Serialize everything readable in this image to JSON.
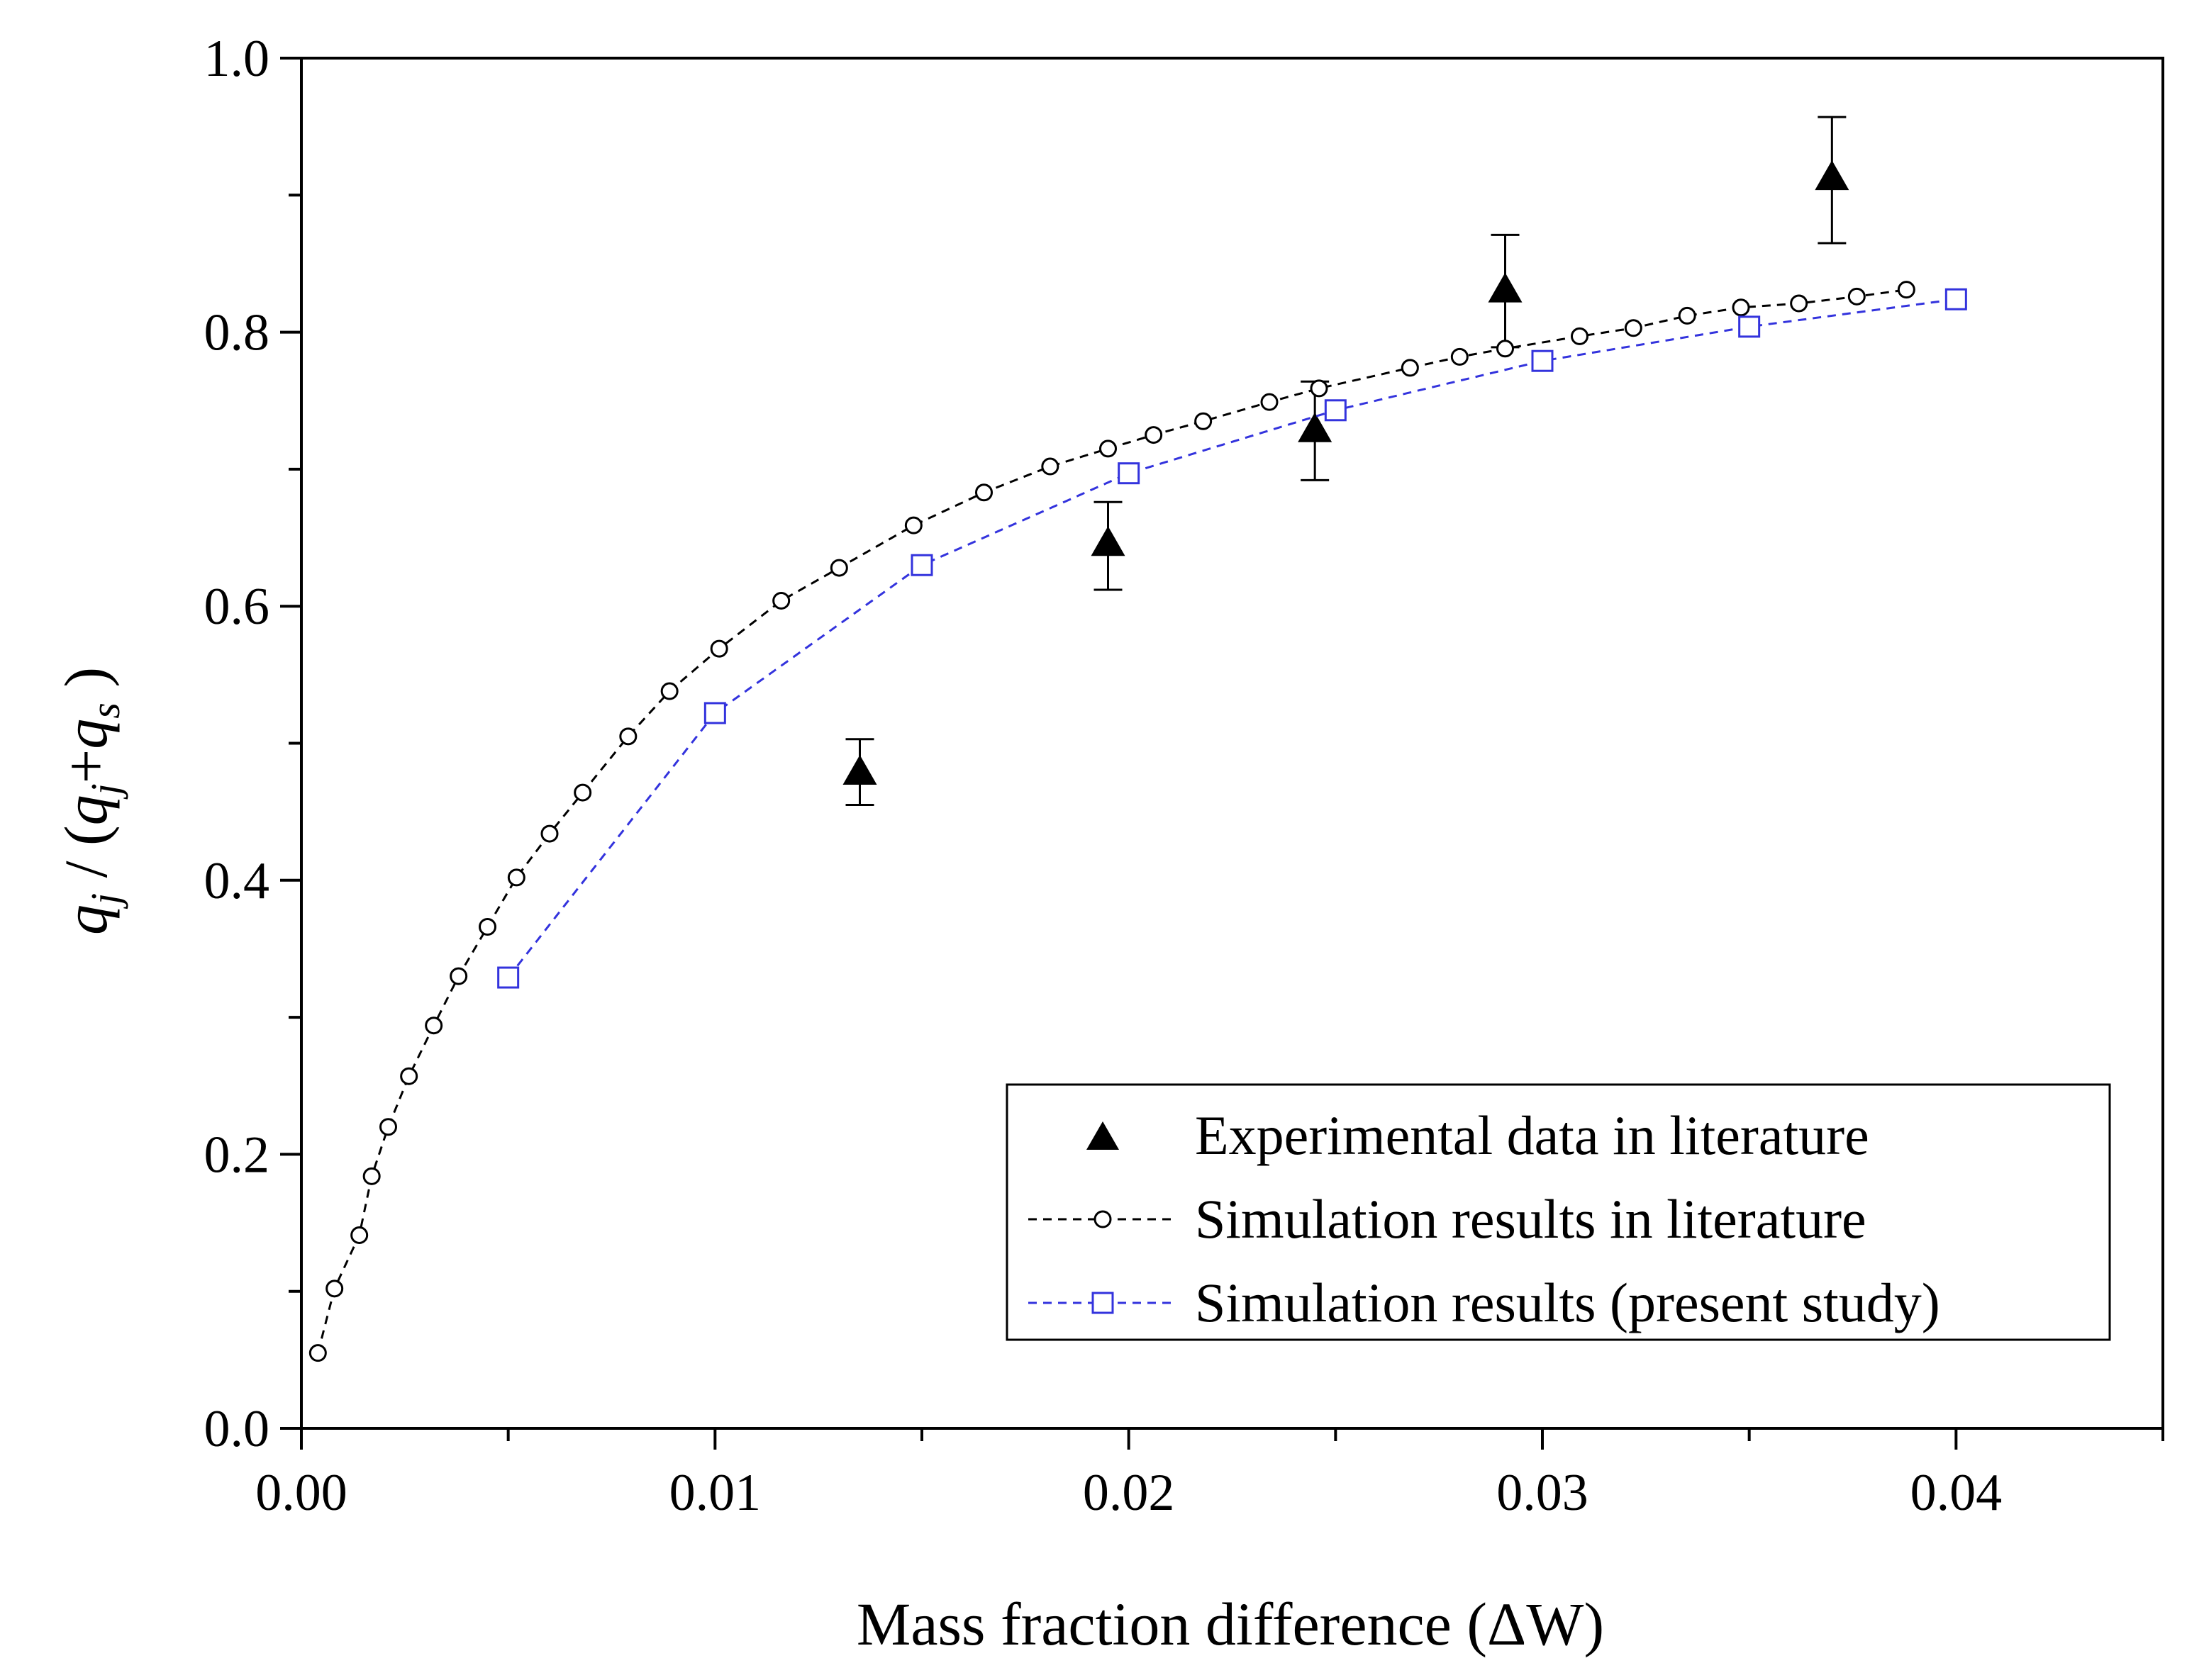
{
  "chart_data": {
    "type": "scatter",
    "title": "",
    "xlabel": "Mass fraction difference (ΔW)",
    "ylabel": {
      "q1": "q",
      "s1": "j",
      "mid": " / (",
      "q2": "q",
      "s2": "j",
      "plus": "+",
      "q3": "q",
      "s3": "s",
      "end": " )"
    },
    "xlim": [
      0.0,
      0.045
    ],
    "ylim": [
      0.0,
      1.0
    ],
    "x_ticks": [
      0.0,
      0.01,
      0.02,
      0.03,
      0.04
    ],
    "x_tick_labels": [
      "0.00",
      "0.01",
      "0.02",
      "0.03",
      "0.04"
    ],
    "x_minor_ticks": [
      0.005,
      0.015,
      0.025,
      0.035,
      0.045
    ],
    "y_ticks": [
      0.0,
      0.2,
      0.4,
      0.6,
      0.8,
      1.0
    ],
    "y_tick_labels": [
      "0.0",
      "0.2",
      "0.4",
      "0.6",
      "0.8",
      "1.0"
    ],
    "y_minor_ticks": [
      0.1,
      0.3,
      0.5,
      0.7,
      0.9
    ],
    "grid": false,
    "legend_position": "bottom-right",
    "series": [
      {
        "name": "Experimental data in literature",
        "marker": "triangle",
        "color": "#000000",
        "line": "none",
        "x": [
          0.0135,
          0.0195,
          0.0245,
          0.0291,
          0.037
        ],
        "y": [
          0.478,
          0.645,
          0.728,
          0.83,
          0.912
        ],
        "err_upper": [
          0.503,
          0.676,
          0.764,
          0.871,
          0.957
        ],
        "err_lower": [
          0.455,
          0.612,
          0.692,
          0.789,
          0.865
        ]
      },
      {
        "name": "Simulation results in literature",
        "marker": "circle",
        "color": "#000000",
        "line": "dashed",
        "x": [
          0.0004,
          0.0008,
          0.0014,
          0.0017,
          0.0021,
          0.0026,
          0.0032,
          0.0038,
          0.0045,
          0.0052,
          0.006,
          0.0068,
          0.0079,
          0.0089,
          0.0101,
          0.0116,
          0.013,
          0.0148,
          0.0165,
          0.0181,
          0.0195,
          0.0206,
          0.0218,
          0.0234,
          0.0246,
          0.0268,
          0.028,
          0.0291,
          0.0309,
          0.0322,
          0.0335,
          0.0348,
          0.0362,
          0.0376,
          0.0388
        ],
        "y": [
          0.055,
          0.102,
          0.141,
          0.184,
          0.22,
          0.257,
          0.294,
          0.33,
          0.366,
          0.402,
          0.434,
          0.464,
          0.505,
          0.538,
          0.569,
          0.604,
          0.628,
          0.659,
          0.683,
          0.702,
          0.715,
          0.725,
          0.735,
          0.749,
          0.759,
          0.774,
          0.782,
          0.788,
          0.797,
          0.803,
          0.812,
          0.818,
          0.821,
          0.826,
          0.831
        ]
      },
      {
        "name": "Simulation results (present study)",
        "marker": "square",
        "color": "#3333dd",
        "line": "dashed",
        "x": [
          0.005,
          0.01,
          0.015,
          0.02,
          0.025,
          0.03,
          0.035,
          0.04
        ],
        "y": [
          0.329,
          0.522,
          0.63,
          0.697,
          0.743,
          0.779,
          0.804,
          0.824
        ]
      }
    ]
  }
}
